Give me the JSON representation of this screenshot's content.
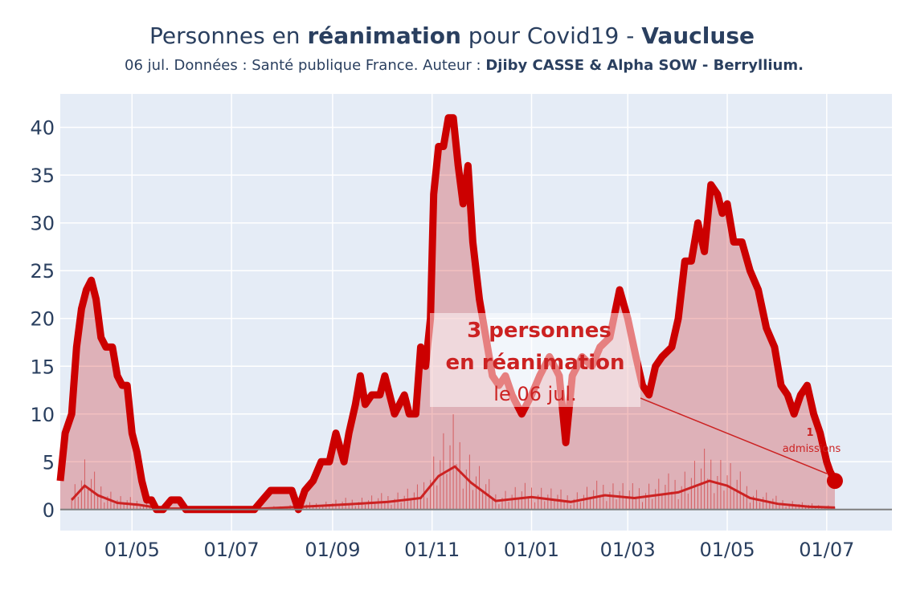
{
  "title": {
    "prefix": "Personnes en ",
    "bold1": "réanimation",
    "middle": " pour Covid19 - ",
    "bold2": "Vaucluse"
  },
  "subtitle": {
    "plain": "06 jul. Données : Santé publique France. Auteur : ",
    "bold": "Djiby CASSE & Alpha SOW - Berryllium."
  },
  "annotation": {
    "line1": "3 personnes",
    "line2": "en réanimation",
    "line3": "le 06 jul."
  },
  "admissions_label": {
    "value": "1",
    "text": "admissions"
  },
  "colors": {
    "plot_bg": "#e5ecf6",
    "grid": "#ffffff",
    "main_line": "#cc0000",
    "fill": "rgba(204,0,0,0.25)",
    "admissions": "#cc2222",
    "zero_line": "#7f7f7f",
    "text": "#2a3f5f"
  },
  "chart_data": {
    "type": "line",
    "title": "Personnes en réanimation pour Covid19 - Vaucluse",
    "y_ticks": [
      0,
      5,
      10,
      15,
      20,
      25,
      30,
      35,
      40
    ],
    "ylim": [
      -2.2,
      43.5
    ],
    "x_ticks": [
      {
        "label": "01/05",
        "date": "2020-05-01"
      },
      {
        "label": "01/07",
        "date": "2020-07-01"
      },
      {
        "label": "01/09",
        "date": "2020-09-01"
      },
      {
        "label": "01/11",
        "date": "2020-11-01"
      },
      {
        "label": "01/01",
        "date": "2021-01-01"
      },
      {
        "label": "01/03",
        "date": "2021-03-01"
      },
      {
        "label": "01/05",
        "date": "2021-05-01"
      },
      {
        "label": "01/07",
        "date": "2021-07-01"
      }
    ],
    "xlim": [
      "2020-03-18",
      "2021-08-10"
    ],
    "grid": true,
    "series": [
      {
        "name": "réanimation",
        "points": [
          [
            "2020-03-18",
            3
          ],
          [
            "2020-03-21",
            8
          ],
          [
            "2020-03-25",
            10
          ],
          [
            "2020-03-28",
            17
          ],
          [
            "2020-03-31",
            21
          ],
          [
            "2020-04-03",
            23
          ],
          [
            "2020-04-06",
            24
          ],
          [
            "2020-04-09",
            22
          ],
          [
            "2020-04-12",
            18
          ],
          [
            "2020-04-15",
            17
          ],
          [
            "2020-04-19",
            17
          ],
          [
            "2020-04-22",
            14
          ],
          [
            "2020-04-25",
            13
          ],
          [
            "2020-04-28",
            13
          ],
          [
            "2020-05-01",
            8
          ],
          [
            "2020-05-04",
            6
          ],
          [
            "2020-05-07",
            3
          ],
          [
            "2020-05-10",
            1
          ],
          [
            "2020-05-13",
            1
          ],
          [
            "2020-05-16",
            0
          ],
          [
            "2020-05-20",
            0
          ],
          [
            "2020-05-25",
            1
          ],
          [
            "2020-05-30",
            1
          ],
          [
            "2020-06-03",
            0
          ],
          [
            "2020-06-15",
            0
          ],
          [
            "2020-07-01",
            0
          ],
          [
            "2020-07-15",
            0
          ],
          [
            "2020-07-20",
            1
          ],
          [
            "2020-07-25",
            2
          ],
          [
            "2020-08-01",
            2
          ],
          [
            "2020-08-07",
            2
          ],
          [
            "2020-08-11",
            0
          ],
          [
            "2020-08-15",
            2
          ],
          [
            "2020-08-20",
            3
          ],
          [
            "2020-08-25",
            5
          ],
          [
            "2020-08-30",
            5
          ],
          [
            "2020-09-03",
            8
          ],
          [
            "2020-09-08",
            5
          ],
          [
            "2020-09-11",
            8
          ],
          [
            "2020-09-15",
            11
          ],
          [
            "2020-09-18",
            14
          ],
          [
            "2020-09-21",
            11
          ],
          [
            "2020-09-25",
            12
          ],
          [
            "2020-09-30",
            12
          ],
          [
            "2020-10-03",
            14
          ],
          [
            "2020-10-06",
            12
          ],
          [
            "2020-10-09",
            10
          ],
          [
            "2020-10-12",
            11
          ],
          [
            "2020-10-15",
            12
          ],
          [
            "2020-10-18",
            10
          ],
          [
            "2020-10-22",
            10
          ],
          [
            "2020-10-25",
            17
          ],
          [
            "2020-10-28",
            15
          ],
          [
            "2020-10-31",
            20
          ],
          [
            "2020-11-02",
            33
          ],
          [
            "2020-11-05",
            38
          ],
          [
            "2020-11-08",
            38
          ],
          [
            "2020-11-11",
            41
          ],
          [
            "2020-11-14",
            41
          ],
          [
            "2020-11-17",
            36
          ],
          [
            "2020-11-20",
            32
          ],
          [
            "2020-11-23",
            36
          ],
          [
            "2020-11-26",
            28
          ],
          [
            "2020-11-30",
            22
          ],
          [
            "2020-12-04",
            18
          ],
          [
            "2020-12-08",
            14
          ],
          [
            "2020-12-12",
            13
          ],
          [
            "2020-12-16",
            14
          ],
          [
            "2020-12-20",
            12
          ],
          [
            "2020-12-26",
            10
          ],
          [
            "2021-01-01",
            12
          ],
          [
            "2021-01-06",
            14
          ],
          [
            "2021-01-12",
            16
          ],
          [
            "2021-01-18",
            14
          ],
          [
            "2021-01-22",
            7
          ],
          [
            "2021-01-26",
            14
          ],
          [
            "2021-02-01",
            16
          ],
          [
            "2021-02-07",
            15
          ],
          [
            "2021-02-12",
            17
          ],
          [
            "2021-02-18",
            18
          ],
          [
            "2021-02-24",
            23
          ],
          [
            "2021-03-01",
            20
          ],
          [
            "2021-03-06",
            16
          ],
          [
            "2021-03-10",
            13
          ],
          [
            "2021-03-14",
            12
          ],
          [
            "2021-03-18",
            15
          ],
          [
            "2021-03-22",
            16
          ],
          [
            "2021-03-28",
            17
          ],
          [
            "2021-04-01",
            20
          ],
          [
            "2021-04-05",
            26
          ],
          [
            "2021-04-09",
            26
          ],
          [
            "2021-04-13",
            30
          ],
          [
            "2021-04-17",
            27
          ],
          [
            "2021-04-21",
            34
          ],
          [
            "2021-04-25",
            33
          ],
          [
            "2021-04-28",
            31
          ],
          [
            "2021-05-01",
            32
          ],
          [
            "2021-05-05",
            28
          ],
          [
            "2021-05-10",
            28
          ],
          [
            "2021-05-15",
            25
          ],
          [
            "2021-05-20",
            23
          ],
          [
            "2021-05-25",
            19
          ],
          [
            "2021-05-30",
            17
          ],
          [
            "2021-06-03",
            13
          ],
          [
            "2021-06-07",
            12
          ],
          [
            "2021-06-11",
            10
          ],
          [
            "2021-06-15",
            12
          ],
          [
            "2021-06-19",
            13
          ],
          [
            "2021-06-23",
            10
          ],
          [
            "2021-06-27",
            8
          ],
          [
            "2021-07-01",
            5
          ],
          [
            "2021-07-03",
            4
          ],
          [
            "2021-07-06",
            3
          ]
        ]
      },
      {
        "name": "admissions",
        "points": [
          [
            "2020-03-25",
            1
          ],
          [
            "2020-04-02",
            2.5
          ],
          [
            "2020-04-10",
            1.5
          ],
          [
            "2020-04-22",
            0.7
          ],
          [
            "2020-05-05",
            0.5
          ],
          [
            "2020-05-20",
            0.1
          ],
          [
            "2020-07-20",
            0.1
          ],
          [
            "2020-08-25",
            0.4
          ],
          [
            "2020-09-15",
            0.6
          ],
          [
            "2020-10-05",
            0.8
          ],
          [
            "2020-10-25",
            1.2
          ],
          [
            "2020-11-05",
            3.5
          ],
          [
            "2020-11-15",
            4.5
          ],
          [
            "2020-11-25",
            2.8
          ],
          [
            "2020-12-10",
            0.9
          ],
          [
            "2021-01-01",
            1.3
          ],
          [
            "2021-01-25",
            0.8
          ],
          [
            "2021-02-15",
            1.5
          ],
          [
            "2021-03-05",
            1.2
          ],
          [
            "2021-04-01",
            1.8
          ],
          [
            "2021-04-20",
            3
          ],
          [
            "2021-05-01",
            2.5
          ],
          [
            "2021-05-15",
            1.2
          ],
          [
            "2021-06-01",
            0.6
          ],
          [
            "2021-06-20",
            0.3
          ],
          [
            "2021-07-06",
            0.2
          ]
        ]
      }
    ]
  }
}
